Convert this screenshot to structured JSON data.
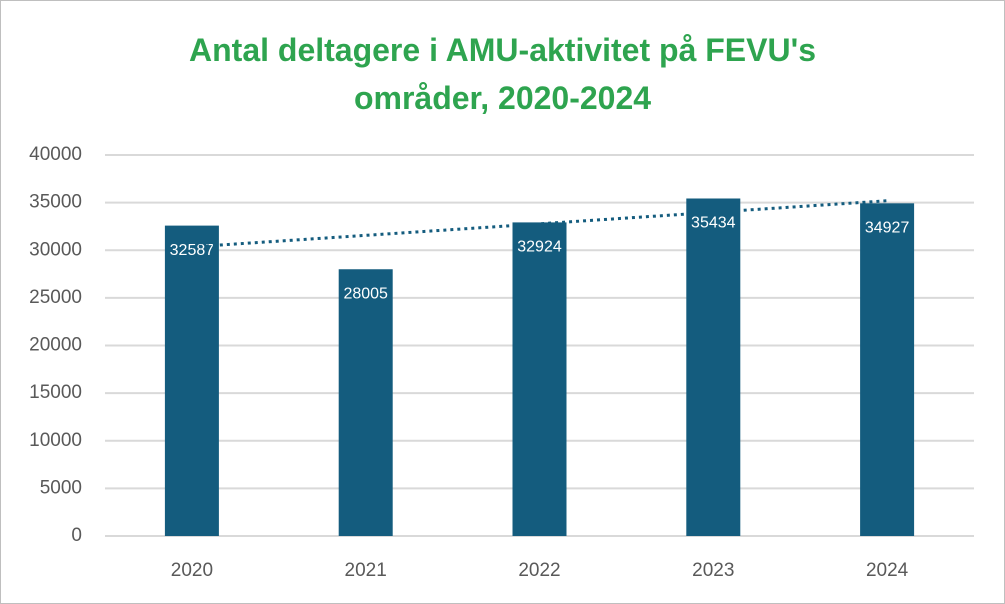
{
  "chart_data": {
    "type": "bar",
    "title": "Antal deltagere i AMU-aktivitet på FEVU's områder, 2020-2024",
    "categories": [
      "2020",
      "2021",
      "2022",
      "2023",
      "2024"
    ],
    "values": [
      32587,
      28005,
      32924,
      35434,
      34927
    ],
    "color": "#145c7e",
    "ylim": [
      0,
      40000
    ],
    "yticks": [
      0,
      5000,
      10000,
      15000,
      20000,
      25000,
      30000,
      35000,
      40000
    ],
    "grid": true,
    "trendline": "linear",
    "trendline_color": "#145c7e"
  }
}
